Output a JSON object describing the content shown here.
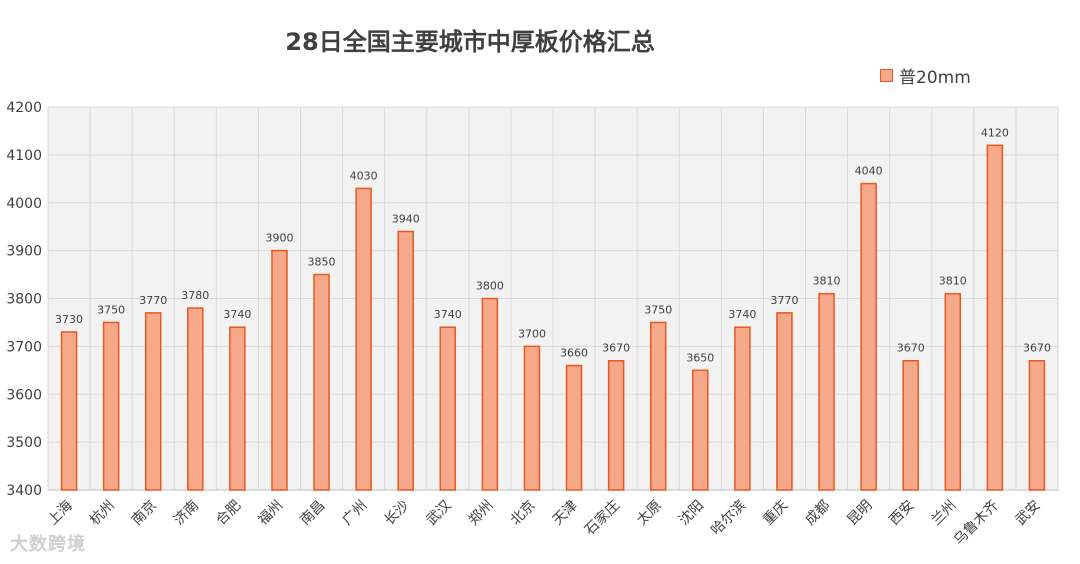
{
  "chart_data": {
    "type": "bar",
    "title": "28日全国主要城市中厚板价格汇总",
    "xlabel": "",
    "ylabel": "",
    "ylim": [
      3400,
      4200
    ],
    "yticks": [
      3400,
      3500,
      3600,
      3700,
      3800,
      3900,
      4000,
      4100,
      4200
    ],
    "grid": true,
    "legend_position": "top-right",
    "categories": [
      "上海",
      "杭州",
      "南京",
      "济南",
      "合肥",
      "福州",
      "南昌",
      "广州",
      "长沙",
      "武汉",
      "郑州",
      "北京",
      "天津",
      "石家庄",
      "太原",
      "沈阳",
      "哈尔滨",
      "重庆",
      "成都",
      "昆明",
      "西安",
      "兰州",
      "乌鲁木齐",
      "武安"
    ],
    "series": [
      {
        "name": "普20mm",
        "values": [
          3730,
          3750,
          3770,
          3780,
          3740,
          3900,
          3850,
          4030,
          3940,
          3740,
          3800,
          3700,
          3660,
          3670,
          3750,
          3650,
          3740,
          3770,
          3810,
          4040,
          3670,
          3810,
          4120,
          3670
        ]
      }
    ],
    "colors": {
      "bar_fill": "#f5a98a",
      "bar_stroke": "#e8591f",
      "plot_bg": "#f2f2f2",
      "grid": "#d9d9d9"
    }
  },
  "watermark": "大数跨境"
}
